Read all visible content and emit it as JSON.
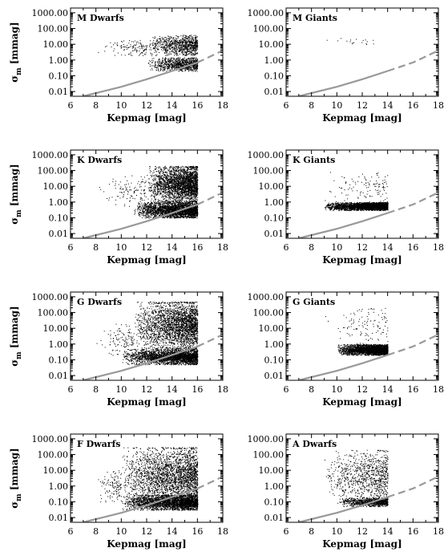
{
  "chart_data": [
    {
      "type": "scatter",
      "title": "M Dwarfs",
      "xlabel": "Kepmag [mag]",
      "ylabel": "σ_m [mmag]",
      "xlim": [
        6,
        18
      ],
      "ylim": [
        0.005,
        2000
      ],
      "yscale": "log",
      "x_ticks": [
        "6",
        "8",
        "10",
        "12",
        "14",
        "16",
        "18"
      ],
      "y_ticks": [
        "0.01",
        "0.10",
        "1.00",
        "10.00",
        "100.00",
        "1000.00"
      ],
      "scatter_regions": [
        {
          "x_range": [
            12,
            16
          ],
          "y_low": 2,
          "y_high": 40,
          "density": "medium"
        },
        {
          "x_range": [
            12,
            16
          ],
          "y_low": 0.2,
          "y_high": 1.5,
          "density": "medium"
        },
        {
          "x_range": [
            8,
            12
          ],
          "y_low": 2,
          "y_high": 20,
          "density": "sparse"
        }
      ],
      "reference_curve": {
        "style": "solid-then-dashed",
        "color": "#999999",
        "solid_until": 16,
        "x": [
          7,
          8,
          10,
          12,
          14,
          16,
          18
        ],
        "y": [
          0.005,
          0.008,
          0.02,
          0.06,
          0.2,
          0.7,
          4
        ]
      }
    },
    {
      "type": "scatter",
      "title": "M Giants",
      "xlabel": "Kepmag [mag]",
      "ylabel": "",
      "xlim": [
        6,
        18
      ],
      "ylim": [
        0.005,
        2000
      ],
      "yscale": "log",
      "x_ticks": [
        "6",
        "8",
        "10",
        "12",
        "14",
        "16",
        "18"
      ],
      "y_ticks": [
        "0.01",
        "0.10",
        "1.00",
        "10.00",
        "100.00",
        "1000.00"
      ],
      "scatter_regions": [
        {
          "x_range": [
            9,
            13
          ],
          "y_low": 8,
          "y_high": 30,
          "density": "very-sparse"
        }
      ],
      "reference_curve": {
        "style": "solid-then-dashed",
        "color": "#999999",
        "solid_until": 14,
        "x": [
          7,
          8,
          10,
          12,
          14,
          16,
          18
        ],
        "y": [
          0.005,
          0.008,
          0.02,
          0.06,
          0.2,
          0.7,
          4
        ]
      }
    },
    {
      "type": "scatter",
      "title": "K Dwarfs",
      "xlabel": "Kepmag [mag]",
      "ylabel": "σ_m [mmag]",
      "xlim": [
        6,
        18
      ],
      "ylim": [
        0.005,
        2000
      ],
      "yscale": "log",
      "x_ticks": [
        "6",
        "8",
        "10",
        "12",
        "14",
        "16",
        "18"
      ],
      "y_ticks": [
        "0.01",
        "0.10",
        "1.00",
        "10.00",
        "100.00",
        "1000.00"
      ],
      "scatter_regions": [
        {
          "x_range": [
            12,
            16
          ],
          "y_low": 1,
          "y_high": 200,
          "density": "dense"
        },
        {
          "x_range": [
            11,
            16
          ],
          "y_low": 0.1,
          "y_high": 1,
          "density": "dense"
        },
        {
          "x_range": [
            8,
            12
          ],
          "y_low": 0.5,
          "y_high": 50,
          "density": "sparse"
        }
      ],
      "reference_curve": {
        "style": "solid-then-dashed",
        "color": "#999999",
        "solid_until": 16,
        "x": [
          7,
          8,
          10,
          12,
          14,
          16,
          18
        ],
        "y": [
          0.005,
          0.008,
          0.02,
          0.06,
          0.2,
          0.7,
          4
        ]
      }
    },
    {
      "type": "scatter",
      "title": "K Giants",
      "xlabel": "Kepmag [mag]",
      "ylabel": "",
      "xlim": [
        6,
        18
      ],
      "ylim": [
        0.005,
        2000
      ],
      "yscale": "log",
      "x_ticks": [
        "6",
        "8",
        "10",
        "12",
        "14",
        "16",
        "18"
      ],
      "y_ticks": [
        "0.01",
        "0.10",
        "1.00",
        "10.00",
        "100.00",
        "1000.00"
      ],
      "scatter_regions": [
        {
          "x_range": [
            9,
            14
          ],
          "y_low": 0.3,
          "y_high": 1,
          "density": "dense"
        },
        {
          "x_range": [
            9,
            14
          ],
          "y_low": 1,
          "y_high": 100,
          "density": "sparse"
        }
      ],
      "reference_curve": {
        "style": "solid-then-dashed",
        "color": "#999999",
        "solid_until": 14,
        "x": [
          7,
          8,
          10,
          12,
          14,
          16,
          18
        ],
        "y": [
          0.005,
          0.008,
          0.02,
          0.06,
          0.2,
          0.7,
          4
        ]
      }
    },
    {
      "type": "scatter",
      "title": "G Dwarfs",
      "xlabel": "Kepmag [mag]",
      "ylabel": "σ_m [mmag]",
      "xlim": [
        6,
        18
      ],
      "ylim": [
        0.005,
        2000
      ],
      "yscale": "log",
      "x_ticks": [
        "6",
        "8",
        "10",
        "12",
        "14",
        "16",
        "18"
      ],
      "y_ticks": [
        "0.01",
        "0.10",
        "1.00",
        "10.00",
        "100.00",
        "1000.00"
      ],
      "scatter_regions": [
        {
          "x_range": [
            11,
            16
          ],
          "y_low": 0.5,
          "y_high": 500,
          "density": "dense"
        },
        {
          "x_range": [
            10,
            16
          ],
          "y_low": 0.05,
          "y_high": 0.5,
          "density": "dense"
        },
        {
          "x_range": [
            8,
            11
          ],
          "y_low": 0.2,
          "y_high": 20,
          "density": "sparse"
        }
      ],
      "reference_curve": {
        "style": "solid-then-dashed",
        "color": "#999999",
        "solid_until": 16,
        "x": [
          7,
          8,
          10,
          12,
          14,
          16,
          18
        ],
        "y": [
          0.005,
          0.008,
          0.02,
          0.06,
          0.2,
          0.7,
          4
        ]
      }
    },
    {
      "type": "scatter",
      "title": "G Giants",
      "xlabel": "Kepmag [mag]",
      "ylabel": "",
      "xlim": [
        6,
        18
      ],
      "ylim": [
        0.005,
        2000
      ],
      "yscale": "log",
      "x_ticks": [
        "6",
        "8",
        "10",
        "12",
        "14",
        "16",
        "18"
      ],
      "y_ticks": [
        "0.01",
        "0.10",
        "1.00",
        "10.00",
        "100.00",
        "1000.00"
      ],
      "scatter_regions": [
        {
          "x_range": [
            10,
            14
          ],
          "y_low": 0.2,
          "y_high": 1,
          "density": "dense"
        },
        {
          "x_range": [
            9,
            14
          ],
          "y_low": 1,
          "y_high": 200,
          "density": "sparse"
        }
      ],
      "reference_curve": {
        "style": "solid-then-dashed",
        "color": "#999999",
        "solid_until": 14,
        "x": [
          7,
          8,
          10,
          12,
          14,
          16,
          18
        ],
        "y": [
          0.005,
          0.008,
          0.02,
          0.06,
          0.2,
          0.7,
          4
        ]
      }
    },
    {
      "type": "scatter",
      "title": "F Dwarfs",
      "xlabel": "Kepmag [mag]",
      "ylabel": "σ_m [mmag]",
      "xlim": [
        6,
        18
      ],
      "ylim": [
        0.005,
        2000
      ],
      "yscale": "log",
      "x_ticks": [
        "6",
        "8",
        "10",
        "12",
        "14",
        "16",
        "18"
      ],
      "y_ticks": [
        "0.01",
        "0.10",
        "1.00",
        "10.00",
        "100.00",
        "1000.00"
      ],
      "scatter_regions": [
        {
          "x_range": [
            10,
            16
          ],
          "y_low": 0.05,
          "y_high": 300,
          "density": "dense"
        },
        {
          "x_range": [
            10,
            16
          ],
          "y_low": 0.03,
          "y_high": 0.3,
          "density": "dense"
        },
        {
          "x_range": [
            8,
            10
          ],
          "y_low": 0.1,
          "y_high": 10,
          "density": "sparse"
        }
      ],
      "reference_curve": {
        "style": "solid-then-dashed",
        "color": "#999999",
        "solid_until": 16,
        "x": [
          7,
          8,
          10,
          12,
          14,
          16,
          18
        ],
        "y": [
          0.005,
          0.008,
          0.02,
          0.06,
          0.2,
          0.7,
          4
        ]
      }
    },
    {
      "type": "scatter",
      "title": "A Dwarfs",
      "xlabel": "Kepmag [mag]",
      "ylabel": "",
      "xlim": [
        6,
        18
      ],
      "ylim": [
        0.005,
        2000
      ],
      "yscale": "log",
      "x_ticks": [
        "6",
        "8",
        "10",
        "12",
        "14",
        "16",
        "18"
      ],
      "y_ticks": [
        "0.01",
        "0.10",
        "1.00",
        "10.00",
        "100.00",
        "1000.00"
      ],
      "scatter_regions": [
        {
          "x_range": [
            9,
            14
          ],
          "y_low": 0.1,
          "y_high": 200,
          "density": "medium"
        },
        {
          "x_range": [
            10,
            14
          ],
          "y_low": 0.05,
          "y_high": 0.2,
          "density": "medium"
        }
      ],
      "reference_curve": {
        "style": "solid-then-dashed",
        "color": "#999999",
        "solid_until": 14,
        "x": [
          7,
          8,
          10,
          12,
          14,
          16,
          18
        ],
        "y": [
          0.005,
          0.008,
          0.02,
          0.06,
          0.2,
          0.7,
          4
        ]
      }
    }
  ]
}
